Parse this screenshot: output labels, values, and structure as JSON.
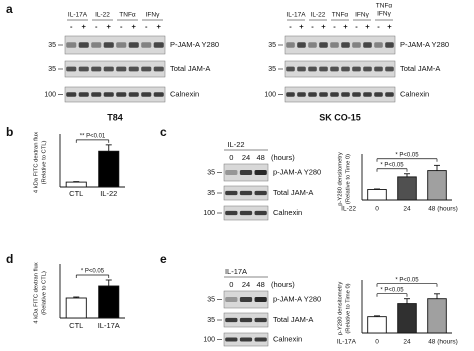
{
  "panels": [
    {
      "label": "a",
      "blots": [
        {
          "title": "T84",
          "treatments": [
            "IL-17A",
            "IL-22",
            "TNFα",
            "IFNγ"
          ],
          "signs": [
            "-",
            "+"
          ],
          "rows": [
            {
              "marker": "35",
              "name": "P-JAM-A Y280"
            },
            {
              "marker": "35",
              "name": "Total JAM-A"
            },
            {
              "marker": "100",
              "name": "Calnexin"
            }
          ]
        },
        {
          "title": "SK CO-15",
          "treatments": [
            "IL-17A",
            "IL-22",
            "TNFα",
            "IFNγ",
            [
              "TNFα",
              "IFNγ"
            ]
          ],
          "signs": [
            "-",
            "+"
          ],
          "rows": [
            {
              "marker": "35",
              "name": "P-JAM-A Y280"
            },
            {
              "marker": "35",
              "name": "Total JAM-A"
            },
            {
              "marker": "100",
              "name": "Calnexin"
            }
          ]
        }
      ]
    },
    {
      "label": "b",
      "chart": {
        "type": "bar",
        "y_label": [
          "4 kDa FITC dextran flux",
          "(Relative to CTL)"
        ],
        "categories": [
          "CTL",
          "IL-22"
        ],
        "values": [
          1,
          7.3
        ],
        "errors": [
          0.1,
          1.3
        ],
        "colors": [
          "#ffffff",
          "#000000"
        ],
        "ylim": [
          0,
          10
        ],
        "annotations": [
          "** P<0.01"
        ]
      }
    },
    {
      "label": "c",
      "blot": {
        "treatment": "IL-22",
        "times": [
          "0",
          "24",
          "48"
        ],
        "unit": "(hours)",
        "rows": [
          {
            "marker": "35",
            "name": "p-JAM-A Y280"
          },
          {
            "marker": "35",
            "name": "Total JAM-A"
          },
          {
            "marker": "100",
            "name": "Calnexin"
          }
        ]
      },
      "chart": {
        "type": "bar",
        "y_label": [
          "p-Y280 densitometry",
          "(Relative to Time 0)"
        ],
        "x_prefix": "IL-22",
        "categories": [
          "0",
          "24",
          "48 (hours)"
        ],
        "values": [
          1,
          2.2,
          2.8
        ],
        "errors": [
          0.05,
          0.3,
          0.5
        ],
        "colors": [
          "#ffffff",
          "#505050",
          "#a0a0a0"
        ],
        "ylim": [
          0,
          4
        ],
        "annotations": [
          "* P<0.05",
          "* P<0.05"
        ]
      }
    },
    {
      "label": "d",
      "chart": {
        "type": "bar",
        "y_label": [
          "4 kDa FITC dextran flux",
          "(Relative to CTL)"
        ],
        "categories": [
          "CTL",
          "IL-17A"
        ],
        "values": [
          1,
          1.6
        ],
        "errors": [
          0.05,
          0.3
        ],
        "colors": [
          "#ffffff",
          "#000000"
        ],
        "ylim": [
          0,
          2.5
        ],
        "annotations": [
          "* P<0.05"
        ]
      }
    },
    {
      "label": "e",
      "blot": {
        "treatment": "IL-17A",
        "times": [
          "0",
          "24",
          "48"
        ],
        "unit": "(hours)",
        "rows": [
          {
            "marker": "35",
            "name": "p-JAM-A Y280"
          },
          {
            "marker": "35",
            "name": "Total JAM-A"
          },
          {
            "marker": "100",
            "name": "Calnexin"
          }
        ]
      },
      "chart": {
        "type": "bar",
        "y_label": [
          "p-Y280 densitometry",
          "(Relative to Time 0)"
        ],
        "x_prefix": "IL-17A",
        "categories": [
          "0",
          "24",
          "48 (hours)"
        ],
        "values": [
          1,
          1.8,
          2.1
        ],
        "errors": [
          0.05,
          0.3,
          0.3
        ],
        "colors": [
          "#ffffff",
          "#303030",
          "#a0a0a0"
        ],
        "ylim": [
          0,
          3
        ],
        "annotations": [
          "* P<0.05",
          "* P<0.05"
        ]
      }
    }
  ]
}
